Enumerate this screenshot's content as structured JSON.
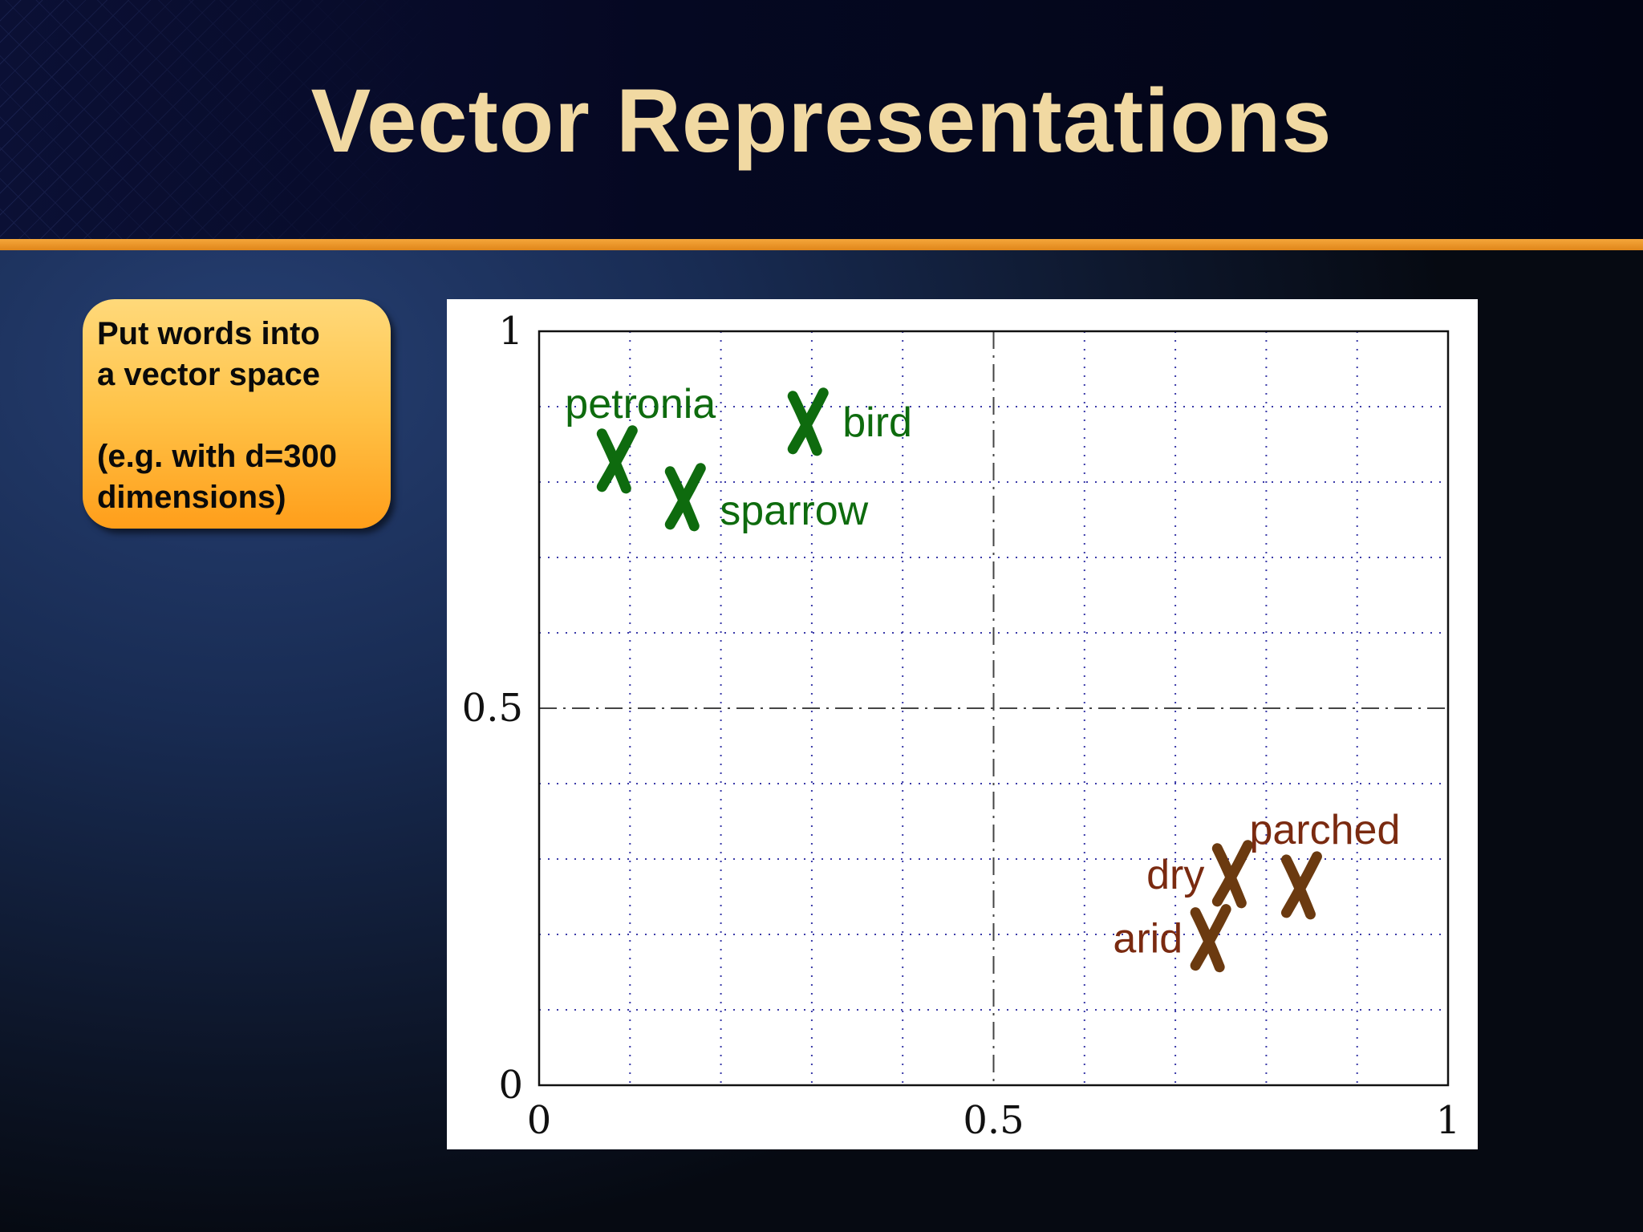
{
  "slide": {
    "title": "Vector Representations"
  },
  "callout": {
    "line1": "Put words into",
    "line2": "a vector space",
    "line3": "(e.g. with d=300",
    "line4": "dimensions)"
  },
  "colors": {
    "bird_group": "#0e6b0e",
    "dry_group": "#7a2a10",
    "dry_marker": "#6b3a10",
    "title": "#f1d9a2",
    "accent_bar": "#f0961f"
  },
  "chart_data": {
    "type": "scatter",
    "title": "",
    "xlabel": "",
    "ylabel": "",
    "xlim": [
      0,
      1
    ],
    "ylim": [
      0,
      1
    ],
    "x_ticks": [
      {
        "value": 0,
        "label": "0"
      },
      {
        "value": 0.5,
        "label": "0.5"
      },
      {
        "value": 1,
        "label": "1"
      }
    ],
    "y_ticks": [
      {
        "value": 0,
        "label": "0"
      },
      {
        "value": 0.5,
        "label": "0.5"
      },
      {
        "value": 1,
        "label": "1"
      }
    ],
    "grid": true,
    "grid_step": 0.1,
    "center_lines": [
      0.5
    ],
    "marker": "x",
    "points": [
      {
        "label": "petronia",
        "x": 0.085,
        "y": 0.83,
        "group": "bird",
        "label_position": "above"
      },
      {
        "label": "bird",
        "x": 0.295,
        "y": 0.88,
        "group": "bird",
        "label_position": "right"
      },
      {
        "label": "sparrow",
        "x": 0.16,
        "y": 0.78,
        "group": "bird",
        "label_position": "right-below"
      },
      {
        "label": "dry",
        "x": 0.762,
        "y": 0.28,
        "group": "dry",
        "label_position": "left"
      },
      {
        "label": "parched",
        "x": 0.838,
        "y": 0.265,
        "group": "dry",
        "label_position": "above"
      },
      {
        "label": "arid",
        "x": 0.738,
        "y": 0.195,
        "group": "dry",
        "label_position": "left"
      }
    ]
  }
}
